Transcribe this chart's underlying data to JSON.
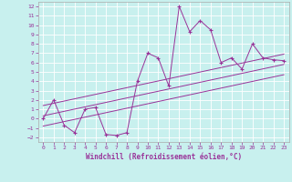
{
  "xlabel": "Windchill (Refroidissement éolien,°C)",
  "background_color": "#c8f0ee",
  "grid_color": "#aadddd",
  "line_color": "#993399",
  "xlim": [
    -0.5,
    23.5
  ],
  "ylim": [
    -2.5,
    12.5
  ],
  "xticks": [
    0,
    1,
    2,
    3,
    4,
    5,
    6,
    7,
    8,
    9,
    10,
    11,
    12,
    13,
    14,
    15,
    16,
    17,
    18,
    19,
    20,
    21,
    22,
    23
  ],
  "yticks": [
    -2,
    -1,
    0,
    1,
    2,
    3,
    4,
    5,
    6,
    7,
    8,
    9,
    10,
    11,
    12
  ],
  "main_x": [
    0,
    1,
    2,
    3,
    4,
    5,
    6,
    7,
    8,
    9,
    10,
    11,
    12,
    13,
    14,
    15,
    16,
    17,
    18,
    19,
    20,
    21,
    22,
    23
  ],
  "main_y": [
    0,
    2,
    -0.7,
    -1.5,
    1.0,
    1.2,
    -1.7,
    -1.8,
    -1.5,
    4.0,
    7.0,
    6.5,
    3.5,
    12.0,
    9.3,
    10.5,
    9.5,
    6.0,
    6.5,
    5.3,
    8.0,
    6.5,
    6.3,
    6.2
  ],
  "line1_x": [
    0,
    23
  ],
  "line1_y": [
    0.3,
    5.8
  ],
  "line2_x": [
    0,
    23
  ],
  "line2_y": [
    -0.8,
    4.7
  ],
  "line3_x": [
    0,
    23
  ],
  "line3_y": [
    1.4,
    6.9
  ]
}
